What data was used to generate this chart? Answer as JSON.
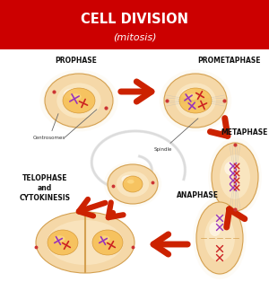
{
  "title_line1": "CELL DIVISION",
  "title_line2": "(mitosis)",
  "title_bg_color": "#cc0000",
  "title_text_color": "#ffffff",
  "bg_color": "#ffffff",
  "arrow_color": "#cc2200",
  "phases": [
    "PROPHASE",
    "PROMETAPHASE",
    "METAPHASE",
    "ANAPHASE",
    "TELOPHASE\nand\nCYTOKINESIS"
  ],
  "centrosomes_label": "Centrosomes",
  "spindle_label": "Spindle",
  "cell_fill_outer": "#f5d8a8",
  "cell_fill_inner": "#fdefd0",
  "cell_glow": "#fdf0d8",
  "cell_edge": "#d4a050",
  "nucleus_fill": "#f5c060",
  "chrom_purple": "#9933bb",
  "chrom_red": "#cc2222",
  "spiral_color": "#d8d8d8",
  "dot_color": "#cc3333",
  "label_color": "#111111"
}
